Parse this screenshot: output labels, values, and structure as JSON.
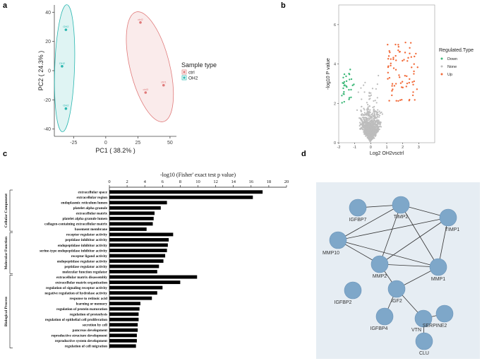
{
  "panels": {
    "a": "a",
    "b": "b",
    "c": "c",
    "d": "d"
  },
  "chart_data": [
    {
      "id": "a",
      "type": "scatter",
      "title": "",
      "xlabel": "PC1 ( 38.2% )",
      "ylabel": "PC2 ( 24.3% )",
      "xlim": [
        -40,
        55
      ],
      "ylim": [
        -45,
        45
      ],
      "xticks": [
        -25,
        0,
        25,
        50
      ],
      "xtick_labels": [
        "-25",
        "0",
        "25",
        "50"
      ],
      "yticks": [
        -40,
        -20,
        0,
        20,
        40
      ],
      "ytick_labels": [
        "-40",
        "-20",
        "0",
        "20",
        "40"
      ],
      "legend": {
        "title": "Sample type",
        "entries": [
          "ctrl",
          "OH2"
        ],
        "position": "right"
      },
      "colors": {
        "ctrl": "#e07a7a",
        "OH2": "#2ab7b0"
      },
      "series": [
        {
          "name": "ctrl",
          "points": [
            {
              "x": 27,
              "y": 33,
              "label": "ctrl2"
            },
            {
              "x": 31,
              "y": -15,
              "label": "ctrl3"
            },
            {
              "x": 45,
              "y": -10,
              "label": "ctrl1"
            }
          ]
        },
        {
          "name": "OH2",
          "points": [
            {
              "x": -31,
              "y": 28,
              "label": "OH2"
            },
            {
              "x": -34,
              "y": 3,
              "label": "OH2"
            },
            {
              "x": -31,
              "y": -26,
              "label": "OH2"
            }
          ]
        }
      ]
    },
    {
      "id": "b",
      "type": "scatter",
      "title": "",
      "xlabel": "Log2 OH2vsctrl",
      "ylabel": "-log10 P value",
      "xlim": [
        -2,
        4
      ],
      "ylim": [
        0,
        7
      ],
      "xticks": [
        -2,
        -1,
        0,
        1,
        2,
        3
      ],
      "xtick_labels": [
        "-2",
        "-1",
        "0",
        "1",
        "2",
        "3"
      ],
      "yticks": [
        0,
        2,
        4,
        6
      ],
      "ytick_labels": [
        "0",
        "2",
        "4",
        "6"
      ],
      "legend": {
        "title": "Regulated.Type",
        "entries": [
          "Down",
          "None",
          "Up"
        ],
        "position": "right"
      },
      "colors": {
        "Down": "#3cb878",
        "None": "#bdbdbd",
        "Up": "#f26b3a"
      },
      "series": [
        {
          "name": "None",
          "approx_points": 900
        },
        {
          "name": "Down",
          "approx_points": 30
        },
        {
          "name": "Up",
          "approx_points": 75
        }
      ]
    },
    {
      "id": "c",
      "type": "bar",
      "orientation": "horizontal",
      "title": "-log10 (Fisher' exact test p value)",
      "xlim": [
        0,
        20
      ],
      "xticks": [
        0,
        2,
        4,
        6,
        8,
        10,
        12,
        14,
        16,
        18,
        20
      ],
      "xtick_labels": [
        "0",
        "2",
        "4",
        "6",
        "8",
        "10",
        "12",
        "14",
        "16",
        "18",
        "20"
      ],
      "groups": [
        {
          "name": "Cellular Component",
          "categories": [
            "extracellular space",
            "extracellular region",
            "endoplasmic reticulum lumen",
            "platelet alpha granule",
            "extracellular matrix",
            "platelet alpha granule lumen",
            "collagen-containing extracellular matrix",
            "basement membrane"
          ],
          "values": [
            17.3,
            16.2,
            6.5,
            5.8,
            5.1,
            5.0,
            4.9,
            4.2
          ]
        },
        {
          "name": "Molecular Function",
          "categories": [
            "receptor regulator activity",
            "peptidase inhibitor activity",
            "endopeptidase inhibitor activity",
            "serine-type endopeptidase inhibitor activity",
            "receptor ligand activity",
            "endopeptidase regulator activity",
            "peptidase regulator activity",
            "molecular function regulator"
          ],
          "values": [
            7.2,
            6.7,
            6.6,
            6.5,
            6.3,
            6.1,
            5.6,
            5.4
          ]
        },
        {
          "name": "Biological Process",
          "categories": [
            "extracellular matrix disassembly",
            "extracellular matrix organization",
            "regulation of signaling receptor activity",
            "negative regulation of hydrolase activity",
            "response to retinoic acid",
            "learning or memory",
            "regulation of protein maturation",
            "regulation of proteolysis",
            "regulation of epithelial cell proliferation",
            "secretion by cell",
            "pancreas development",
            "reproductive structure development",
            "reproductive system development",
            "regulation of cell migration"
          ],
          "values": [
            9.9,
            8.0,
            6.0,
            5.4,
            4.8,
            3.5,
            3.4,
            3.3,
            3.3,
            3.2,
            3.2,
            3.1,
            3.1,
            3.0
          ]
        }
      ]
    },
    {
      "id": "d",
      "type": "network",
      "nodes": [
        "IGFBP7",
        "TIMP2",
        "TIMP1",
        "MMP10",
        "MMP2",
        "MMP1",
        "IGFBP2",
        "IGF2",
        "IGFBP4",
        "VTN",
        "SERPINE2",
        "CLU"
      ],
      "edges": [
        [
          "IGFBP7",
          "TIMP2"
        ],
        [
          "TIMP2",
          "MMP10"
        ],
        [
          "TIMP2",
          "MMP2"
        ],
        [
          "TIMP2",
          "MMP1"
        ],
        [
          "TIMP2",
          "TIMP1"
        ],
        [
          "TIMP1",
          "MMP10"
        ],
        [
          "TIMP1",
          "MMP2"
        ],
        [
          "TIMP1",
          "MMP1"
        ],
        [
          "MMP10",
          "MMP2"
        ],
        [
          "MMP10",
          "MMP1"
        ],
        [
          "MMP2",
          "MMP1"
        ],
        [
          "MMP2",
          "IGF2"
        ],
        [
          "MMP1",
          "IGF2"
        ],
        [
          "IGF2",
          "IGFBP4"
        ],
        [
          "IGF2",
          "VTN"
        ],
        [
          "VTN",
          "SERPINE2"
        ],
        [
          "VTN",
          "CLU"
        ]
      ],
      "colors": {
        "node": "#7ea7c9",
        "background": "#e6edf3",
        "edge": "#333333"
      }
    }
  ]
}
